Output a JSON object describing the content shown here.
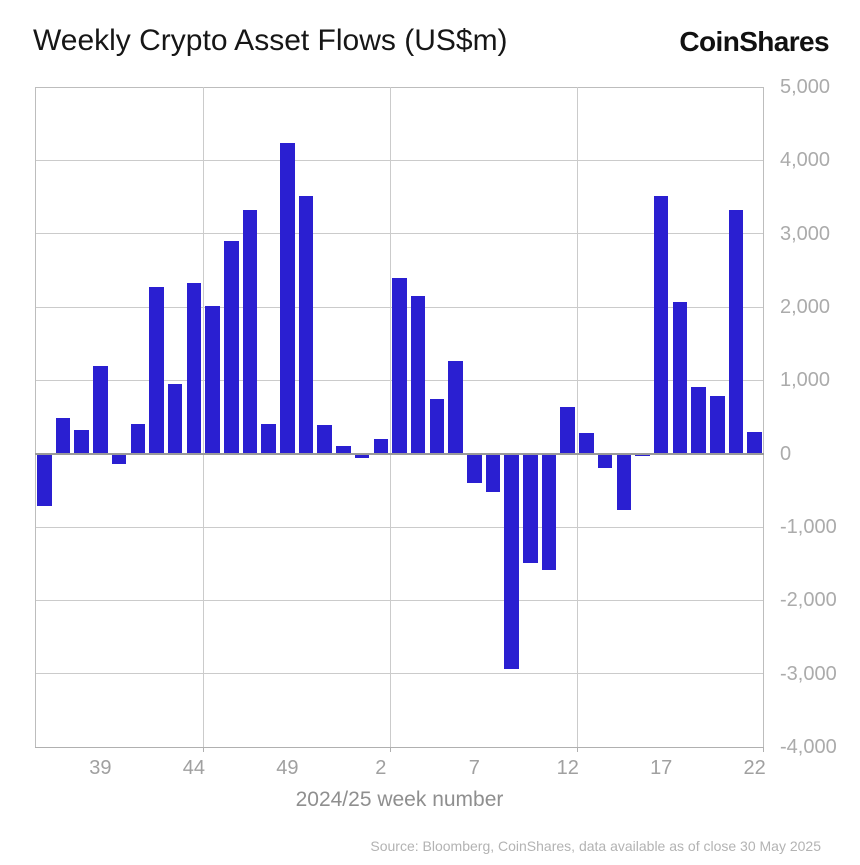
{
  "header": {
    "logo": "CoinShares"
  },
  "chart_data": {
    "type": "bar",
    "title": "Weekly Crypto Asset Flows (US$m)",
    "xlabel": "2024/25 week number",
    "ylabel": "",
    "ylim": [
      -4000,
      5000
    ],
    "grid": "horizontal-on, vertical-every-10-weeks",
    "legend_position": "none",
    "bar_color": "#2a1fd1",
    "ytick_values": [
      5000,
      4000,
      3000,
      2000,
      1000,
      0,
      -1000,
      -2000,
      -3000,
      -4000
    ],
    "ytick_labels": [
      "5,000",
      "4,000",
      "3,000",
      "2,000",
      "1,000",
      "0",
      "-1,000",
      "-2,000",
      "-3,000",
      "-4,000"
    ],
    "categories": [
      "36",
      "37",
      "38",
      "39",
      "40",
      "41",
      "42",
      "43",
      "44",
      "45",
      "46",
      "47",
      "48",
      "49",
      "50",
      "51",
      "52",
      "1",
      "2",
      "3",
      "4",
      "5",
      "6",
      "7",
      "8",
      "9",
      "10",
      "11",
      "12",
      "13",
      "14",
      "15",
      "16",
      "17",
      "18",
      "19",
      "20",
      "21",
      "22"
    ],
    "values": [
      -720,
      490,
      320,
      1200,
      -140,
      400,
      2270,
      950,
      2330,
      2020,
      2900,
      3320,
      410,
      4230,
      3520,
      390,
      110,
      -60,
      200,
      2400,
      2150,
      750,
      1260,
      -400,
      -520,
      -2940,
      -1490,
      -1590,
      640,
      280,
      -200,
      -770,
      -35,
      3510,
      2070,
      910,
      790,
      3320,
      290
    ],
    "xticks": [
      {
        "label": "39",
        "index": 3
      },
      {
        "label": "44",
        "index": 8
      },
      {
        "label": "49",
        "index": 13
      },
      {
        "label": "2",
        "index": 18
      },
      {
        "label": "7",
        "index": 23
      },
      {
        "label": "12",
        "index": 28
      },
      {
        "label": "17",
        "index": 33
      },
      {
        "label": "22",
        "index": 38
      }
    ],
    "vgrid_boundaries": [
      9,
      19,
      29
    ],
    "axis_tick_boundaries": [
      9,
      19,
      29,
      39
    ]
  },
  "footer": {
    "source": "Source: Bloomberg, CoinShares, data available as of close 30 May 2025"
  }
}
